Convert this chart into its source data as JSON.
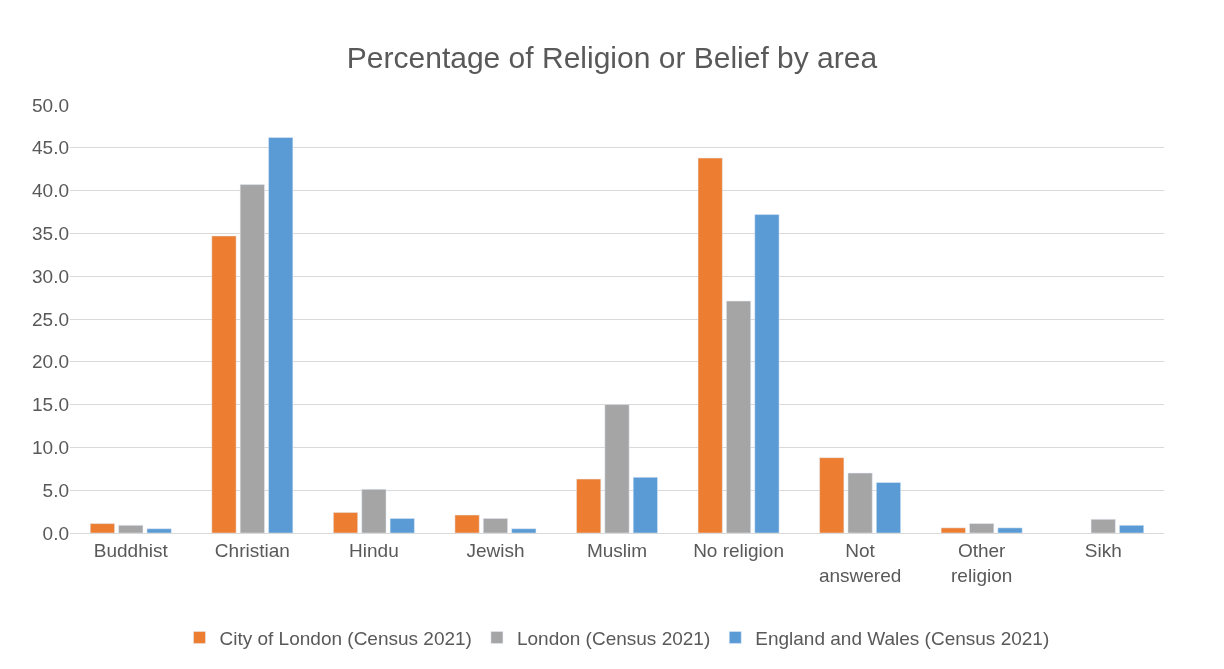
{
  "chart_data": {
    "type": "bar",
    "title": "Percentage of Religion or Belief by area",
    "categories": [
      "Buddhist",
      "Christian",
      "Hindu",
      "Jewish",
      "Muslim",
      "No religion",
      "Not answered",
      "Other religion",
      "Sikh"
    ],
    "series": [
      {
        "name": "City of London (Census 2021)",
        "color": "#ed7d31",
        "values": [
          1.1,
          34.7,
          2.4,
          2.1,
          6.3,
          43.8,
          8.8,
          0.6,
          null
        ]
      },
      {
        "name": "London (Census 2021)",
        "color": "#a5a5a5",
        "values": [
          0.9,
          40.7,
          5.1,
          1.7,
          15.0,
          27.1,
          7.0,
          1.1,
          1.6
        ]
      },
      {
        "name": "England and Wales (Census 2021)",
        "color": "#5b9bd5",
        "values": [
          0.5,
          46.2,
          1.7,
          0.5,
          6.5,
          37.2,
          5.9,
          0.6,
          0.9
        ]
      }
    ],
    "ylim": [
      0,
      50
    ],
    "yticks": [
      {
        "value": 0,
        "label": "0.0"
      },
      {
        "value": 5,
        "label": "5.0"
      },
      {
        "value": 10,
        "label": "10.0"
      },
      {
        "value": 15,
        "label": "15.0"
      },
      {
        "value": 20,
        "label": "20.0"
      },
      {
        "value": 25,
        "label": "25.0"
      },
      {
        "value": 30,
        "label": "30.0"
      },
      {
        "value": 35,
        "label": "35.0"
      },
      {
        "value": 40,
        "label": "40.0"
      },
      {
        "value": 45,
        "label": "45.0"
      },
      {
        "value": 50,
        "label": "50.0"
      }
    ],
    "grid": "y",
    "legend": "bottom"
  }
}
